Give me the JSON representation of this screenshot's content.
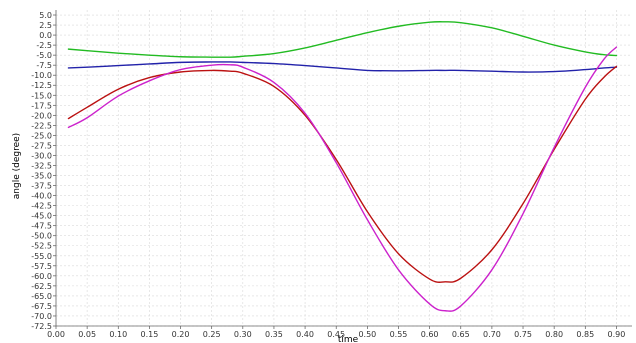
{
  "chart_data": {
    "type": "line",
    "xlabel": "time",
    "ylabel": "angle (degree)",
    "xlim": [
      0.0,
      0.925
    ],
    "ylim": [
      -72.5,
      6.25
    ],
    "xticks": [
      0.0,
      0.05,
      0.1,
      0.15,
      0.2,
      0.25,
      0.3,
      0.35,
      0.4,
      0.45,
      0.5,
      0.55,
      0.6,
      0.65,
      0.7,
      0.75,
      0.8,
      0.85,
      0.9
    ],
    "xtick_labels": [
      "0.00",
      "0.05",
      "0.10",
      "0.15",
      "0.20",
      "0.25",
      "0.30",
      "0.35",
      "0.40",
      "0.45",
      "0.50",
      "0.55",
      "0.60",
      "0.65",
      "0.70",
      "0.75",
      "0.80",
      "0.85",
      "0.90"
    ],
    "yticks": [
      5.0,
      2.5,
      0.0,
      -2.5,
      -5.0,
      -7.5,
      -10.0,
      -12.5,
      -15.0,
      -17.5,
      -20.0,
      -22.5,
      -25.0,
      -27.5,
      -30.0,
      -32.5,
      -35.0,
      -37.5,
      -40.0,
      -42.5,
      -45.0,
      -47.5,
      -50.0,
      -52.5,
      -55.0,
      -57.5,
      -60.0,
      -62.5,
      -65.0,
      -67.5,
      -70.0,
      -72.5
    ],
    "ytick_labels": [
      "5.0",
      "2.5",
      "0.0",
      "-2.5",
      "-5.0",
      "-7.5",
      "-10.0",
      "-12.5",
      "-15.0",
      "-17.5",
      "-20.0",
      "-22.5",
      "-25.0",
      "-27.5",
      "-30.0",
      "-32.5",
      "-35.0",
      "-37.5",
      "-40.0",
      "-42.5",
      "-45.0",
      "-47.5",
      "-50.0",
      "-52.5",
      "-55.0",
      "-57.5",
      "-60.0",
      "-62.5",
      "-65.0",
      "-67.5",
      "-70.0",
      "-72.5"
    ],
    "grid": true,
    "legend": "none",
    "x": [
      0.02,
      0.05,
      0.1,
      0.15,
      0.2,
      0.25,
      0.28,
      0.3,
      0.35,
      0.4,
      0.45,
      0.5,
      0.55,
      0.6,
      0.625,
      0.65,
      0.7,
      0.75,
      0.8,
      0.85,
      0.88,
      0.9
    ],
    "series": [
      {
        "color": "#22bb22",
        "values": [
          -3.5,
          -3.9,
          -4.5,
          -5.0,
          -5.4,
          -5.5,
          -5.5,
          -5.3,
          -4.6,
          -3.2,
          -1.3,
          0.6,
          2.2,
          3.2,
          3.3,
          3.1,
          1.8,
          -0.3,
          -2.5,
          -4.2,
          -4.9,
          -5.1
        ]
      },
      {
        "color": "#2222aa",
        "values": [
          -8.2,
          -8.0,
          -7.6,
          -7.2,
          -6.8,
          -6.7,
          -6.7,
          -6.8,
          -7.1,
          -7.6,
          -8.2,
          -8.8,
          -8.9,
          -8.8,
          -8.8,
          -8.8,
          -9.0,
          -9.2,
          -9.1,
          -8.6,
          -8.2,
          -8.0
        ]
      },
      {
        "color": "#bb1111",
        "values": [
          -20.8,
          -18.0,
          -13.5,
          -10.6,
          -9.2,
          -8.8,
          -9.0,
          -9.5,
          -12.8,
          -20.0,
          -31.0,
          -44.0,
          -54.5,
          -60.8,
          -61.5,
          -60.6,
          -53.5,
          -42.0,
          -28.5,
          -16.0,
          -10.5,
          -7.8
        ]
      },
      {
        "color": "#cc22cc",
        "values": [
          -23.0,
          -20.6,
          -15.2,
          -11.4,
          -8.6,
          -7.5,
          -7.4,
          -8.0,
          -11.8,
          -19.5,
          -31.8,
          -46.0,
          -58.5,
          -67.0,
          -68.7,
          -67.5,
          -58.5,
          -44.5,
          -28.0,
          -13.0,
          -6.0,
          -3.0
        ]
      }
    ]
  }
}
